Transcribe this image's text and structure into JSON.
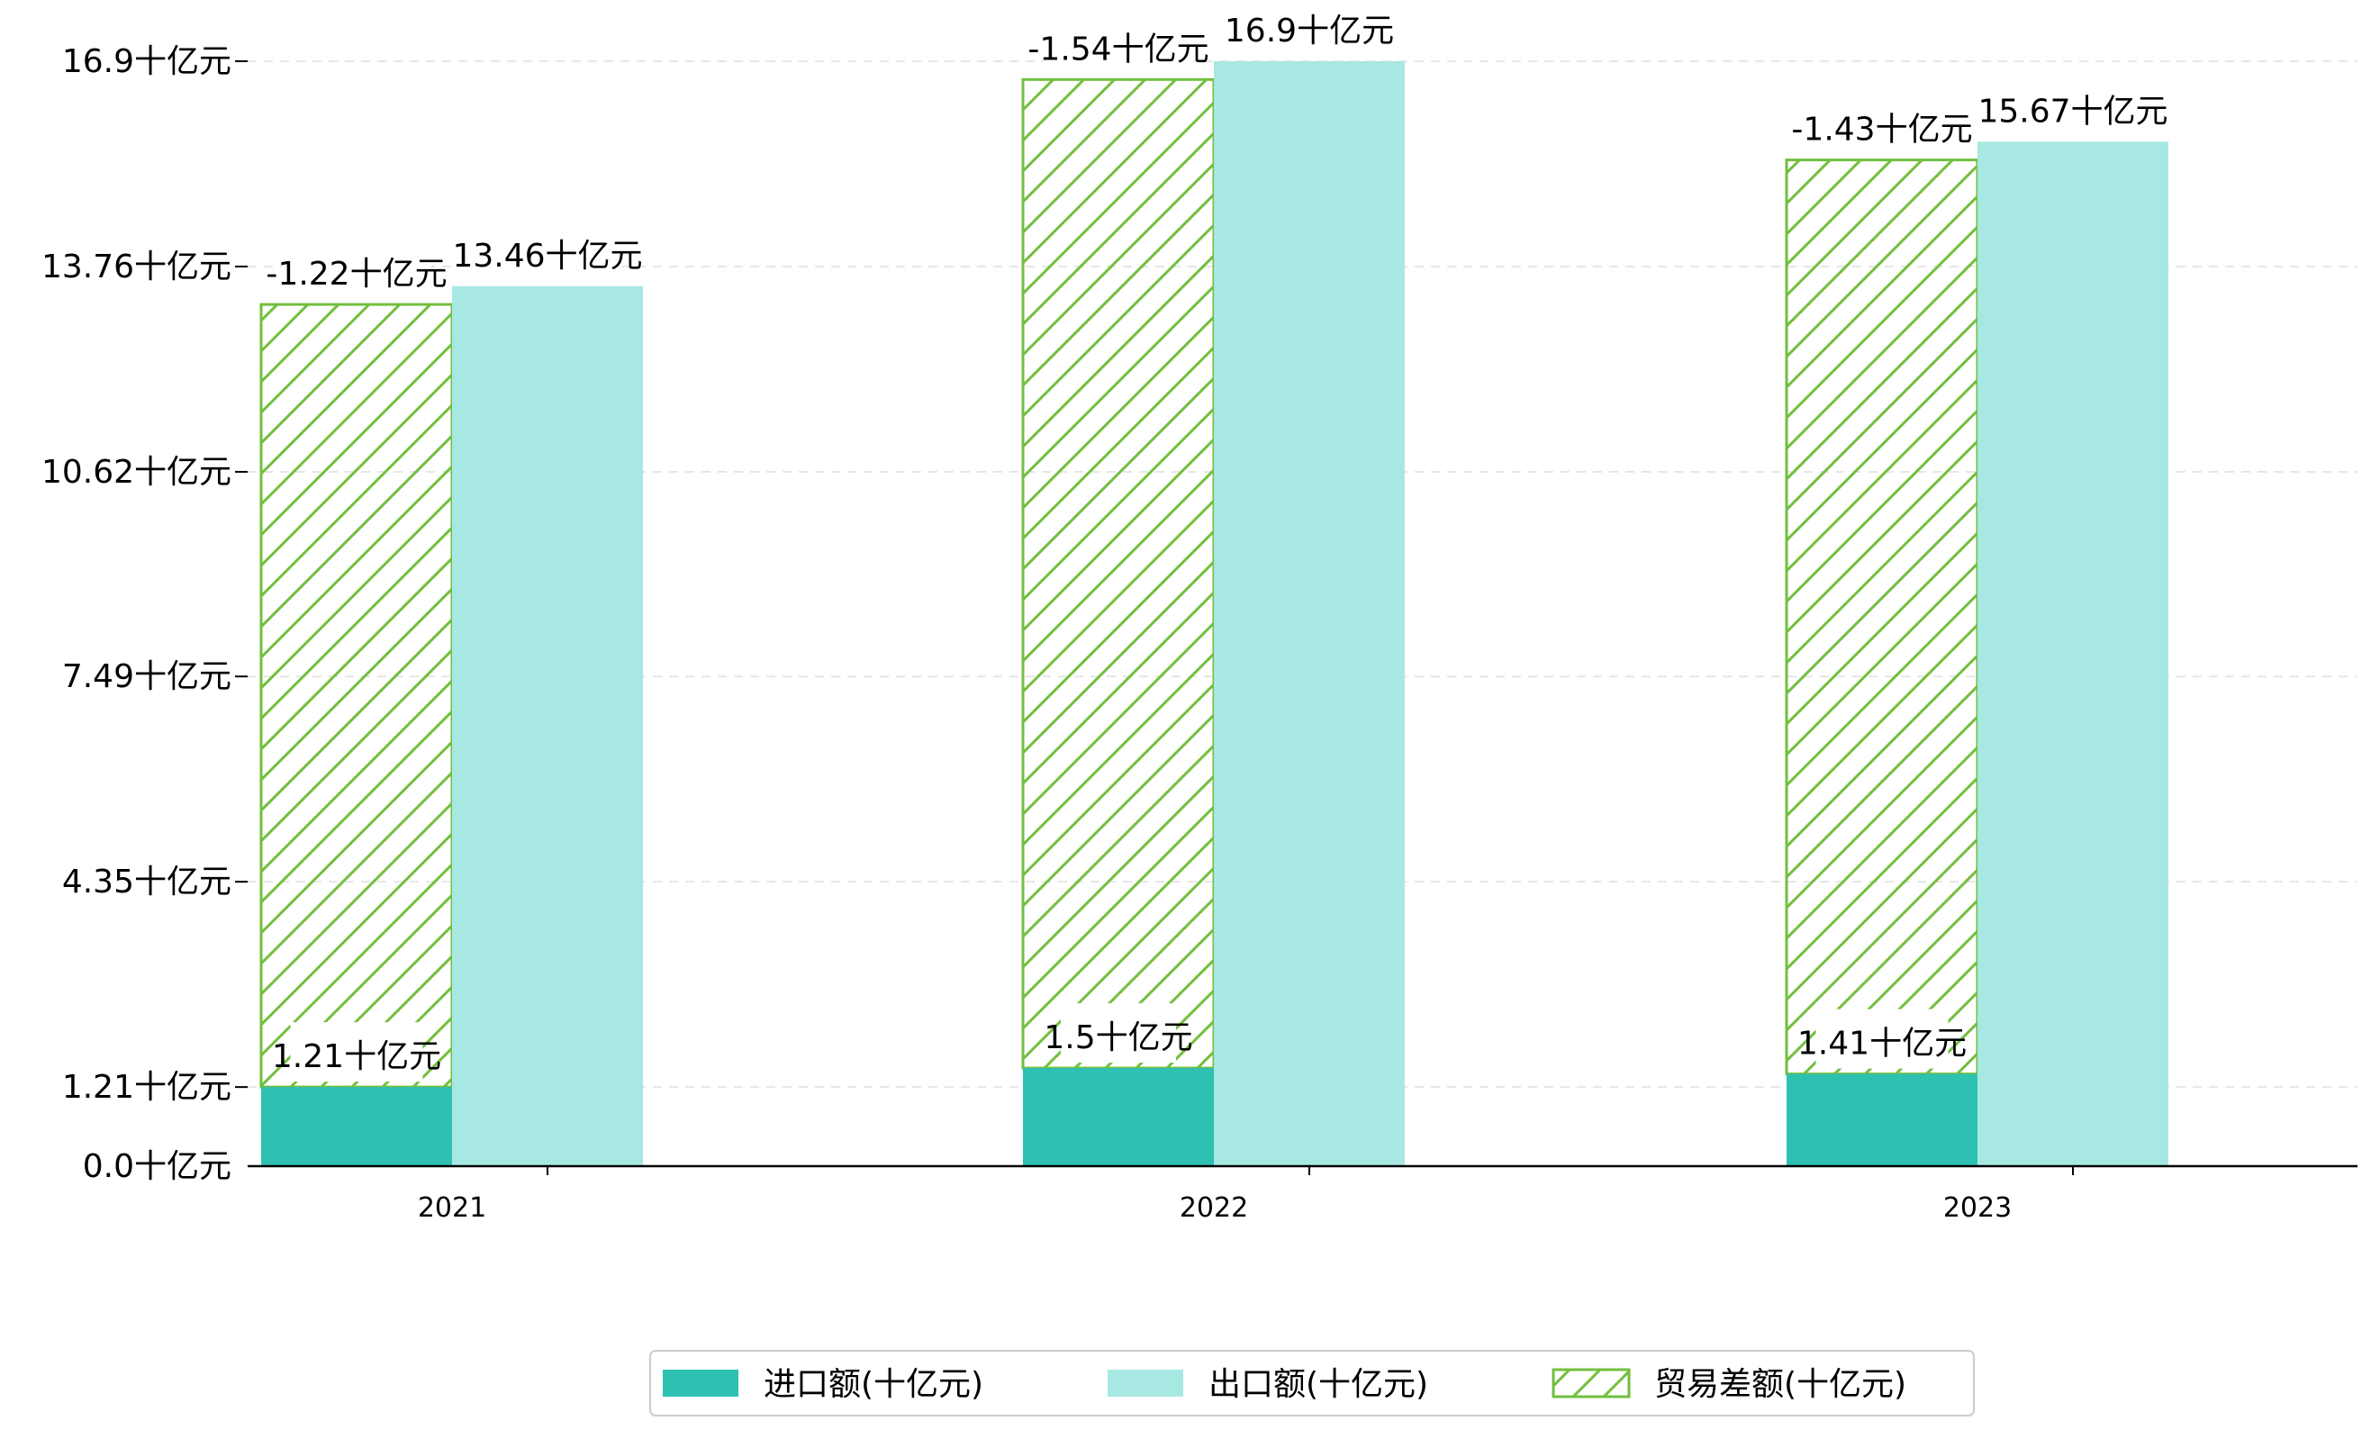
{
  "chart_data": {
    "type": "bar",
    "categories": [
      "2021",
      "2022",
      "2023"
    ],
    "series": [
      {
        "name": "进口额(十亿元)",
        "values": [
          1.21,
          1.5,
          1.41
        ],
        "labels": [
          "1.21十亿元",
          "1.5十亿元",
          "1.41十亿元"
        ],
        "color": "#2ec1b2"
      },
      {
        "name": "出口额(十亿元)",
        "values": [
          13.46,
          16.9,
          15.67
        ],
        "labels": [
          "13.46十亿元",
          "16.9十亿元",
          "15.67十亿元"
        ],
        "color": "#a8e8e2"
      },
      {
        "name": "贸易差额(十亿元)",
        "values": [
          -1.22,
          -1.54,
          -1.43
        ],
        "labels": [
          "-1.22十亿元",
          "-1.54十亿元",
          "-1.43十亿元"
        ],
        "hatch": true,
        "color": "#72bf3e"
      }
    ],
    "yticks": [
      0.0,
      1.21,
      4.35,
      7.49,
      10.62,
      13.76,
      16.9
    ],
    "ytick_labels": [
      "0.0十亿元",
      "1.21十亿元",
      "4.35十亿元",
      "7.49十亿元",
      "10.62十亿元",
      "13.76十亿元",
      "16.9十亿元"
    ],
    "ylim": [
      0,
      16.9
    ],
    "grid": true,
    "legend_position": "bottom-center"
  }
}
